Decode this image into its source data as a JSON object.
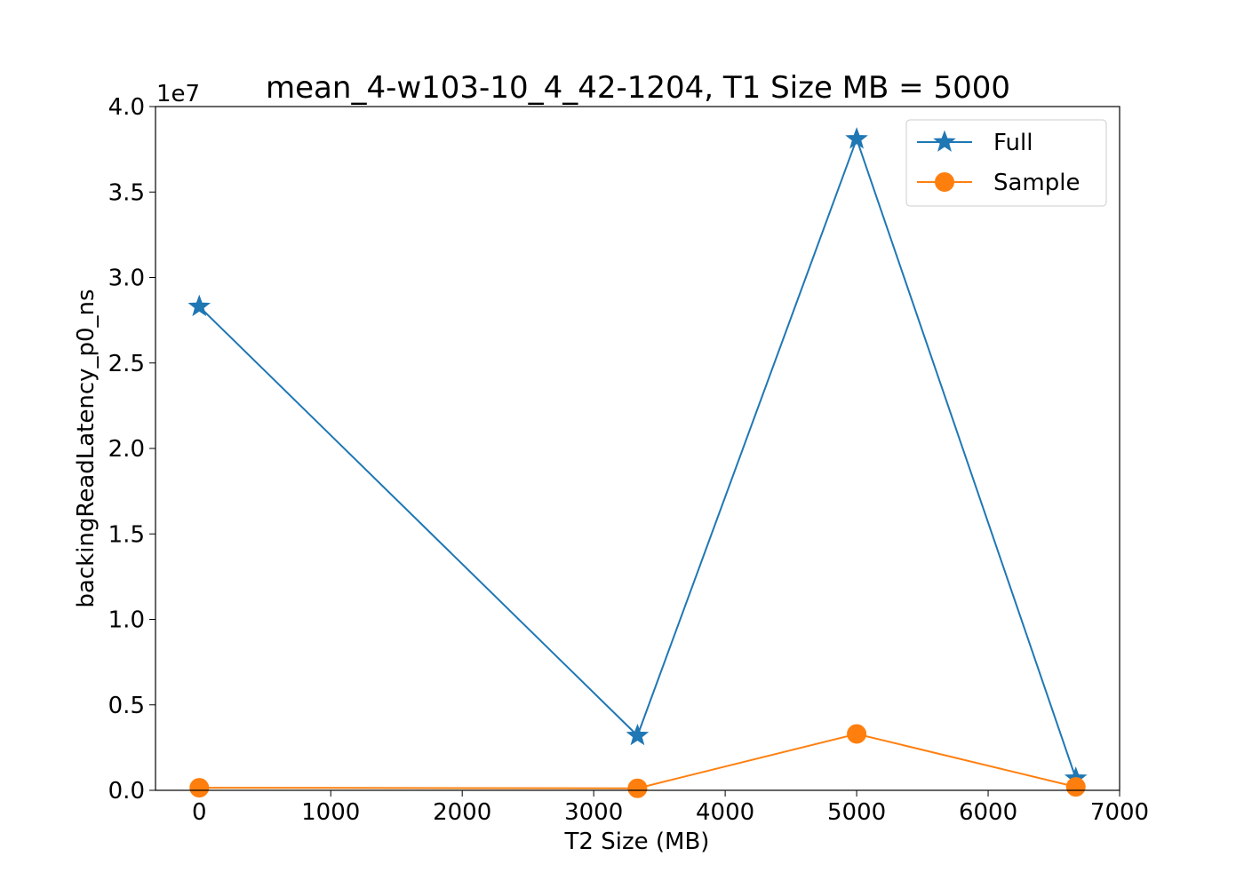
{
  "chart_data": {
    "type": "line",
    "title": "mean_4-w103-10_4_42-1204, T1 Size MB = 5000",
    "xlabel": "T2 Size (MB)",
    "ylabel": "backingReadLatency_p0_ns",
    "y_offset_label": "1e7",
    "xlim": [
      -333,
      7000
    ],
    "ylim": [
      0,
      4.0
    ],
    "x_ticks": [
      0,
      1000,
      2000,
      3000,
      4000,
      5000,
      6000,
      7000
    ],
    "x_tick_labels": [
      "0",
      "1000",
      "2000",
      "3000",
      "4000",
      "5000",
      "6000",
      "7000"
    ],
    "y_ticks": [
      0,
      0.5,
      1.0,
      1.5,
      2.0,
      2.5,
      3.0,
      3.5,
      4.0
    ],
    "y_tick_labels": [
      "0.0",
      "0.5",
      "1.0",
      "1.5",
      "2.0",
      "2.5",
      "3.0",
      "3.5",
      "4.0"
    ],
    "grid": false,
    "legend_position": "top-right",
    "x": [
      0,
      3333,
      5000,
      6667
    ],
    "series": [
      {
        "name": "Full",
        "values": [
          2.83,
          0.32,
          3.81,
          0.07
        ],
        "color": "#1f77b4",
        "marker": "star"
      },
      {
        "name": "Sample",
        "values": [
          0.015,
          0.012,
          0.33,
          0.02
        ],
        "color": "#ff7f0e",
        "marker": "circle"
      }
    ]
  }
}
